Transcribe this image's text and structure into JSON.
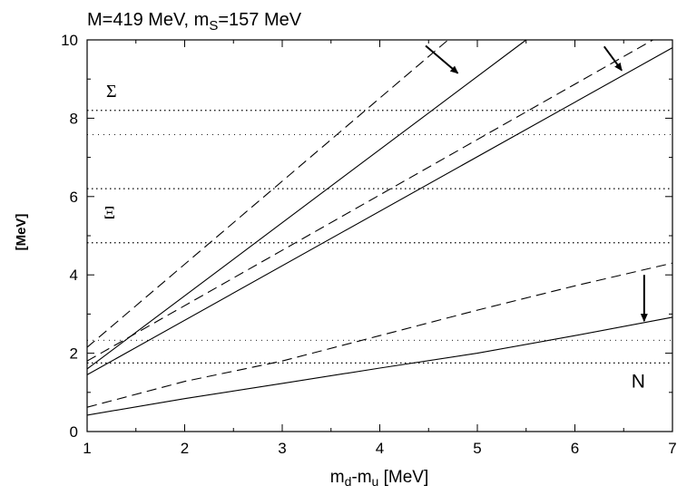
{
  "chart_data": {
    "type": "line",
    "title_line": {
      "prefix": "M=419 MeV, m",
      "sub": "S",
      "suffix": "=157 MeV"
    },
    "xlabel": {
      "a": "m",
      "a_sub": "d",
      "dash": "-m",
      "b_sub": "u",
      "unit": " [MeV]"
    },
    "ylabel": "[MeV]",
    "xlim": [
      1,
      7
    ],
    "ylim": [
      0,
      10
    ],
    "xticks": [
      1,
      2,
      3,
      4,
      5,
      6,
      7
    ],
    "yticks": [
      0,
      2,
      4,
      6,
      8,
      10
    ],
    "grid": false,
    "series": [
      {
        "style": "solid",
        "points": [
          [
            1,
            1.6
          ],
          [
            5.5,
            10.0
          ]
        ]
      },
      {
        "style": "dashed",
        "points": [
          [
            1,
            2.15
          ],
          [
            4.7,
            10.0
          ]
        ]
      },
      {
        "style": "solid",
        "points": [
          [
            1,
            1.45
          ],
          [
            7,
            9.8
          ]
        ]
      },
      {
        "style": "dashed",
        "points": [
          [
            1,
            1.8
          ],
          [
            6.8,
            10.0
          ]
        ]
      },
      {
        "style": "solid",
        "points": [
          [
            1,
            0.42
          ],
          [
            2,
            0.84
          ],
          [
            3,
            1.23
          ],
          [
            4,
            1.62
          ],
          [
            5,
            2.0
          ],
          [
            6,
            2.45
          ],
          [
            7,
            2.92
          ]
        ]
      },
      {
        "style": "dashed",
        "points": [
          [
            1,
            0.62
          ],
          [
            2,
            1.28
          ],
          [
            3,
            1.8
          ],
          [
            4,
            2.45
          ],
          [
            5,
            3.1
          ],
          [
            6,
            3.72
          ],
          [
            7,
            4.3
          ]
        ]
      }
    ],
    "reference_lines": [
      {
        "y": 8.2,
        "style": "dotted-dense"
      },
      {
        "y": 7.58,
        "style": "dotted-sparse"
      },
      {
        "y": 6.2,
        "style": "dotted-dense"
      },
      {
        "y": 4.82,
        "style": "dotted-dense"
      },
      {
        "y": 2.33,
        "style": "dotted-sparse"
      },
      {
        "y": 1.75,
        "style": "dotted-dense"
      }
    ],
    "annotations": [
      {
        "text": "Σ",
        "x": 1.25,
        "y": 8.65,
        "font": "serif"
      },
      {
        "text": "Ξ",
        "x": 1.23,
        "y": 5.55,
        "font": "serif"
      },
      {
        "text": "N",
        "x": 6.65,
        "y": 1.25,
        "font": "sans"
      }
    ],
    "arrows": [
      {
        "from": [
          4.47,
          9.85
        ],
        "to": [
          4.8,
          9.15
        ]
      },
      {
        "from": [
          6.3,
          9.83
        ],
        "to": [
          6.48,
          9.22
        ]
      },
      {
        "from": [
          6.71,
          4.0
        ],
        "to": [
          6.71,
          2.82
        ]
      }
    ]
  }
}
